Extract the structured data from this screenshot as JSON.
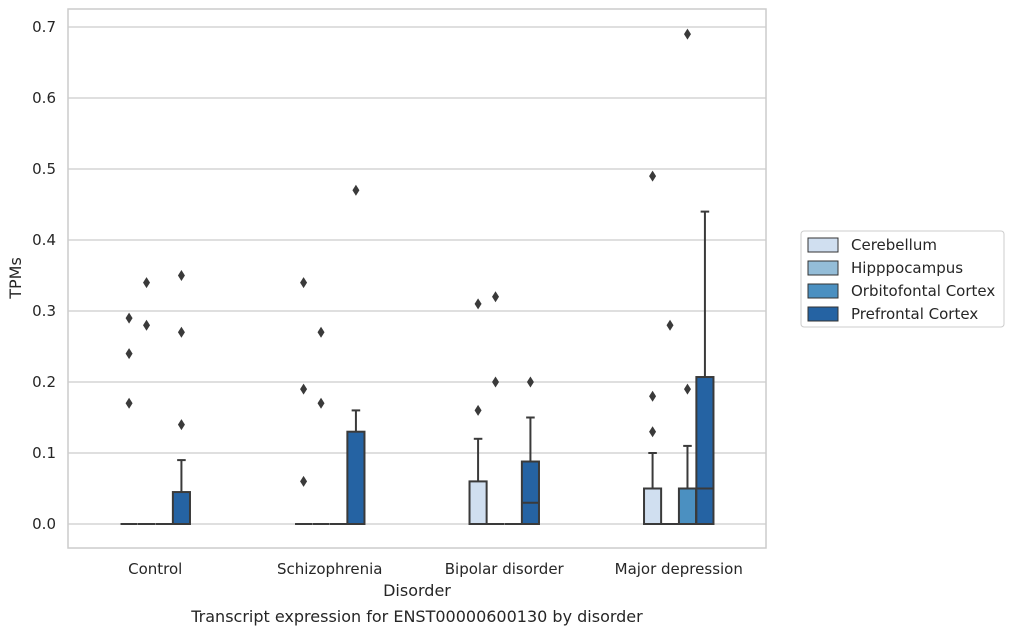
{
  "chart_data": {
    "type": "box",
    "title": "",
    "caption": "Transcript expression for ENST00000600130 by disorder",
    "xlabel": "Disorder",
    "ylabel": "TPMs",
    "ylim": [
      -0.035,
      0.725
    ],
    "yticks": [
      "0.0",
      "0.1",
      "0.2",
      "0.3",
      "0.4",
      "0.5",
      "0.6",
      "0.7"
    ],
    "grid": true,
    "legend_position": "right",
    "categories": [
      "Control",
      "Schizophrenia",
      "Bipolar disorder",
      "Major depression"
    ],
    "series": [
      {
        "name": "Cerebellum",
        "color": "#d0dff0",
        "boxes": [
          {
            "q1": 0,
            "median": 0,
            "q3": 0,
            "whisker_low": 0,
            "whisker_high": 0,
            "outliers": [
              0.17,
              0.24,
              0.29
            ]
          },
          {
            "q1": 0,
            "median": 0,
            "q3": 0,
            "whisker_low": 0,
            "whisker_high": 0,
            "outliers": [
              0.06,
              0.19,
              0.34
            ]
          },
          {
            "q1": 0,
            "median": 0,
            "q3": 0.06,
            "whisker_low": 0,
            "whisker_high": 0.12,
            "outliers": [
              0.16,
              0.31
            ]
          },
          {
            "q1": 0,
            "median": 0,
            "q3": 0.05,
            "whisker_low": 0,
            "whisker_high": 0.1,
            "outliers": [
              0.13,
              0.18,
              0.49
            ]
          }
        ]
      },
      {
        "name": "Hipppocampus",
        "color": "#94bdd8",
        "boxes": [
          {
            "q1": 0,
            "median": 0,
            "q3": 0,
            "whisker_low": 0,
            "whisker_high": 0,
            "outliers": [
              0.28,
              0.34
            ]
          },
          {
            "q1": 0,
            "median": 0,
            "q3": 0,
            "whisker_low": 0,
            "whisker_high": 0,
            "outliers": [
              0.17,
              0.27
            ]
          },
          {
            "q1": 0,
            "median": 0,
            "q3": 0,
            "whisker_low": 0,
            "whisker_high": 0,
            "outliers": [
              0.2,
              0.32
            ]
          },
          {
            "q1": 0,
            "median": 0,
            "q3": 0,
            "whisker_low": 0,
            "whisker_high": 0,
            "outliers": [
              0.28
            ]
          }
        ]
      },
      {
        "name": "Orbitofontal Cortex",
        "color": "#4b90c1",
        "boxes": [
          {
            "q1": 0,
            "median": 0,
            "q3": 0,
            "whisker_low": 0,
            "whisker_high": 0,
            "outliers": []
          },
          {
            "q1": 0,
            "median": 0,
            "q3": 0,
            "whisker_low": 0,
            "whisker_high": 0,
            "outliers": []
          },
          {
            "q1": 0,
            "median": 0,
            "q3": 0,
            "whisker_low": 0,
            "whisker_high": 0,
            "outliers": []
          },
          {
            "q1": 0,
            "median": 0,
            "q3": 0.05,
            "whisker_low": 0,
            "whisker_high": 0.11,
            "outliers": [
              0.19,
              0.69
            ]
          }
        ]
      },
      {
        "name": "Prefrontal Cortex",
        "color": "#2563a3",
        "boxes": [
          {
            "q1": 0,
            "median": 0,
            "q3": 0.045,
            "whisker_low": 0,
            "whisker_high": 0.09,
            "outliers": [
              0.14,
              0.27,
              0.35
            ]
          },
          {
            "q1": 0,
            "median": 0,
            "q3": 0.13,
            "whisker_low": 0,
            "whisker_high": 0.16,
            "outliers": [
              0.47
            ]
          },
          {
            "q1": 0,
            "median": 0.03,
            "q3": 0.088,
            "whisker_low": 0,
            "whisker_high": 0.15,
            "outliers": [
              0.2
            ]
          },
          {
            "q1": 0,
            "median": 0.05,
            "q3": 0.207,
            "whisker_low": 0,
            "whisker_high": 0.44,
            "outliers": []
          }
        ]
      }
    ]
  }
}
